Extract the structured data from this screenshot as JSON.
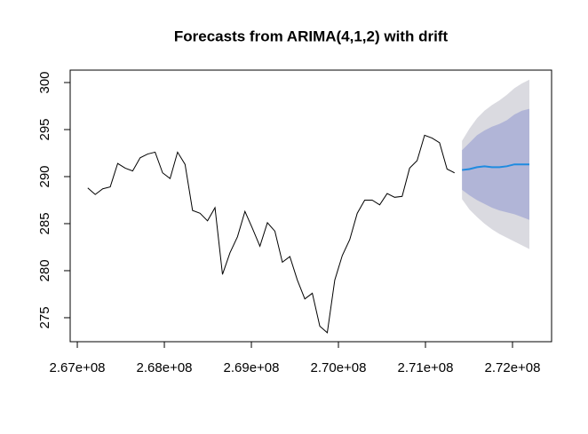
{
  "chart_data": {
    "type": "forecast",
    "title": "Forecasts from ARIMA(4,1,2) with drift",
    "xlim": [
      266918000,
      272449000
    ],
    "ylim": [
      272.45,
      301.32
    ],
    "xticks": [
      {
        "value": 267000000,
        "label": "2.67e+08"
      },
      {
        "value": 268000000,
        "label": "2.68e+08"
      },
      {
        "value": 269000000,
        "label": "2.69e+08"
      },
      {
        "value": 270000000,
        "label": "2.70e+08"
      },
      {
        "value": 271000000,
        "label": "2.71e+08"
      },
      {
        "value": 272000000,
        "label": "2.72e+08"
      }
    ],
    "yticks": [
      275,
      280,
      285,
      290,
      295,
      300
    ],
    "intervals": [
      {
        "color": "#dadae0",
        "x": [
          271420000,
          271506000,
          271592000,
          271678000,
          271764000,
          271850000,
          271936000,
          272022000,
          272108000,
          272194000
        ],
        "lower": [
          287.6,
          286.5,
          285.7,
          285.0,
          284.4,
          283.9,
          283.5,
          283.1,
          282.7,
          282.3
        ],
        "upper": [
          293.8,
          295.1,
          296.2,
          297.0,
          297.6,
          298.1,
          298.7,
          299.4,
          299.9,
          300.3
        ]
      },
      {
        "color": "#b1b5d7",
        "x": [
          271420000,
          271506000,
          271592000,
          271678000,
          271764000,
          271850000,
          271936000,
          272022000,
          272108000,
          272194000
        ],
        "lower": [
          288.6,
          288.0,
          287.5,
          287.1,
          286.7,
          286.4,
          286.2,
          286.0,
          285.7,
          285.4
        ],
        "upper": [
          292.8,
          293.6,
          294.4,
          294.9,
          295.3,
          295.6,
          296.0,
          296.6,
          297.0,
          297.2
        ]
      }
    ],
    "series": [
      {
        "color": "#000000",
        "width": 1,
        "x": [
          267120000,
          267206000,
          267292000,
          267378000,
          267464000,
          267550000,
          267636000,
          267722000,
          267808000,
          267894000,
          267980000,
          268066000,
          268152000,
          268238000,
          268324000,
          268410000,
          268496000,
          268582000,
          268668000,
          268754000,
          268840000,
          268926000,
          269012000,
          269098000,
          269184000,
          269270000,
          269356000,
          269442000,
          269528000,
          269614000,
          269700000,
          269786000,
          269872000,
          269958000,
          270044000,
          270130000,
          270216000,
          270302000,
          270388000,
          270474000,
          270560000,
          270646000,
          270732000,
          270818000,
          270904000,
          270990000,
          271076000,
          271162000,
          271248000,
          271334000
        ],
        "values": [
          288.8,
          288.1,
          288.7,
          288.9,
          291.4,
          290.9,
          290.6,
          292.0,
          292.4,
          292.6,
          290.4,
          289.8,
          292.6,
          291.3,
          286.4,
          286.1,
          285.3,
          286.7,
          279.6,
          281.9,
          283.6,
          286.3,
          284.5,
          282.6,
          285.1,
          284.2,
          280.9,
          281.5,
          279.0,
          277.0,
          277.6,
          274.1,
          273.4,
          279.0,
          281.6,
          283.3,
          286.1,
          287.5,
          287.5,
          287.0,
          288.2,
          287.8,
          287.9,
          290.9,
          291.7,
          294.4,
          294.1,
          293.6,
          290.8,
          290.4
        ]
      },
      {
        "color": "#1f8be0",
        "width": 2,
        "x": [
          271420000,
          271506000,
          271592000,
          271678000,
          271764000,
          271850000,
          271936000,
          272022000,
          272108000,
          272194000
        ],
        "values": [
          290.7,
          290.8,
          291.0,
          291.1,
          291.0,
          291.0,
          291.1,
          291.3,
          291.3,
          291.3
        ]
      }
    ]
  }
}
